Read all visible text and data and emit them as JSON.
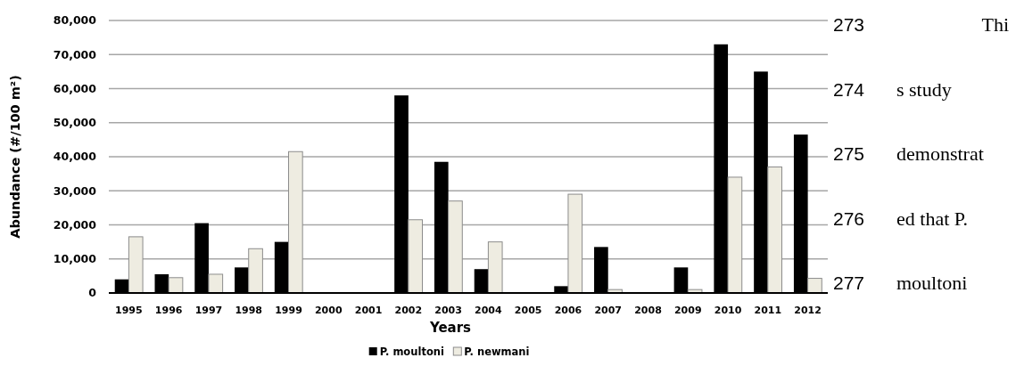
{
  "chart_data": {
    "type": "bar",
    "xlabel": "Years",
    "ylabel": "Abundance (#/100 m²)",
    "categories": [
      "1995",
      "1996",
      "1997",
      "1998",
      "1999",
      "2000",
      "2001",
      "2002",
      "2003",
      "2004",
      "2005",
      "2006",
      "2007",
      "2008",
      "2009",
      "2010",
      "2011",
      "2012"
    ],
    "series": [
      {
        "name": "P. moultoni",
        "color": "#000000",
        "values": [
          4000,
          5500,
          20500,
          7500,
          15000,
          null,
          null,
          58000,
          38500,
          7000,
          null,
          2000,
          13500,
          null,
          7500,
          73000,
          65000,
          46500
        ]
      },
      {
        "name": "P. newmani",
        "color": "#eeece1",
        "values": [
          16500,
          4500,
          5500,
          13000,
          41500,
          null,
          null,
          21500,
          27000,
          15000,
          null,
          29000,
          1000,
          null,
          1000,
          34000,
          37000,
          4300
        ]
      }
    ],
    "ylim": [
      0,
      80000
    ],
    "yticks": [
      {
        "value": 0,
        "label": "0"
      },
      {
        "value": 10000,
        "label": "10,000"
      },
      {
        "value": 20000,
        "label": "20,000"
      },
      {
        "value": 30000,
        "label": "30,000"
      },
      {
        "value": 40000,
        "label": "40,000"
      },
      {
        "value": 50000,
        "label": "50,000"
      },
      {
        "value": 60000,
        "label": "60,000"
      },
      {
        "value": 70000,
        "label": "70,000"
      },
      {
        "value": 80000,
        "label": "80,000"
      }
    ],
    "grid": "y",
    "legend": "bottom",
    "annotations": [
      "273",
      "274",
      "275",
      "276",
      "277",
      "Thi",
      "s study",
      "demonstrat",
      "ed that P.",
      "moultoni"
    ]
  }
}
